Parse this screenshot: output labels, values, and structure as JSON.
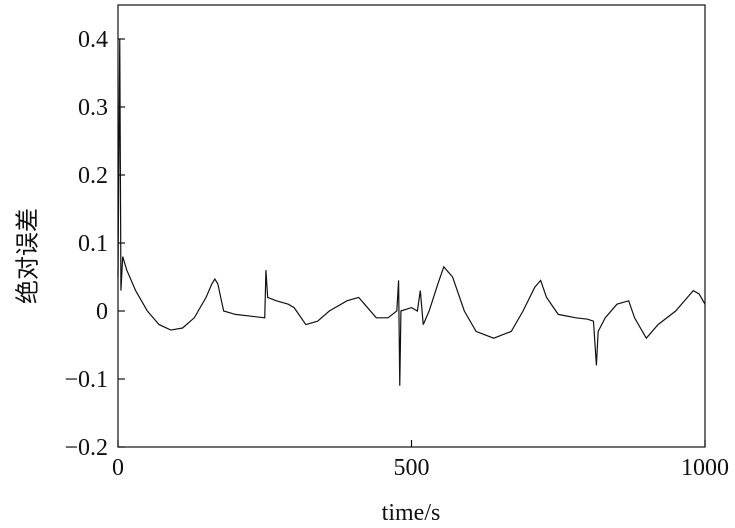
{
  "chart_data": {
    "type": "line",
    "x_label": "time/s",
    "y_label": "绝对误差",
    "xlim": [
      0,
      1000
    ],
    "xticks": [
      0,
      500,
      1000
    ],
    "ylim": [
      -0.2,
      0.45
    ],
    "yticks": [
      {
        "value": -0.2,
        "label": "−0.2"
      },
      {
        "value": -0.1,
        "label": "−0.1"
      },
      0,
      0.1,
      0.2,
      0.3,
      0.4
    ],
    "series": [
      {
        "color": "#111111",
        "x": [
          0,
          3,
          5,
          8,
          15,
          30,
          50,
          70,
          90,
          110,
          130,
          150,
          160,
          165,
          170,
          180,
          200,
          230,
          250,
          252,
          255,
          270,
          290,
          300,
          320,
          340,
          360,
          390,
          410,
          420,
          440,
          460,
          475,
          478,
          480,
          482,
          500,
          510,
          515,
          520,
          530,
          545,
          555,
          570,
          590,
          610,
          640,
          670,
          690,
          710,
          720,
          730,
          750,
          780,
          800,
          810,
          815,
          818,
          830,
          850,
          870,
          880,
          900,
          920,
          950,
          980,
          990,
          1000
        ],
        "values": [
          0.05,
          0.4,
          0.03,
          0.08,
          0.06,
          0.03,
          0.0,
          -0.02,
          -0.028,
          -0.025,
          -0.01,
          0.02,
          0.04,
          0.047,
          0.04,
          0.0,
          -0.005,
          -0.008,
          -0.01,
          0.06,
          0.02,
          0.015,
          0.01,
          0.005,
          -0.02,
          -0.015,
          0.0,
          0.015,
          0.02,
          0.01,
          -0.01,
          -0.01,
          0.0,
          0.045,
          -0.11,
          0.0,
          0.005,
          0.0,
          0.03,
          -0.02,
          0.0,
          0.04,
          0.065,
          0.05,
          0.0,
          -0.03,
          -0.04,
          -0.03,
          0.0,
          0.035,
          0.045,
          0.02,
          -0.005,
          -0.01,
          -0.012,
          -0.015,
          -0.08,
          -0.03,
          -0.01,
          0.01,
          0.015,
          -0.01,
          -0.04,
          -0.02,
          0.0,
          0.03,
          0.025,
          0.01
        ]
      }
    ]
  }
}
